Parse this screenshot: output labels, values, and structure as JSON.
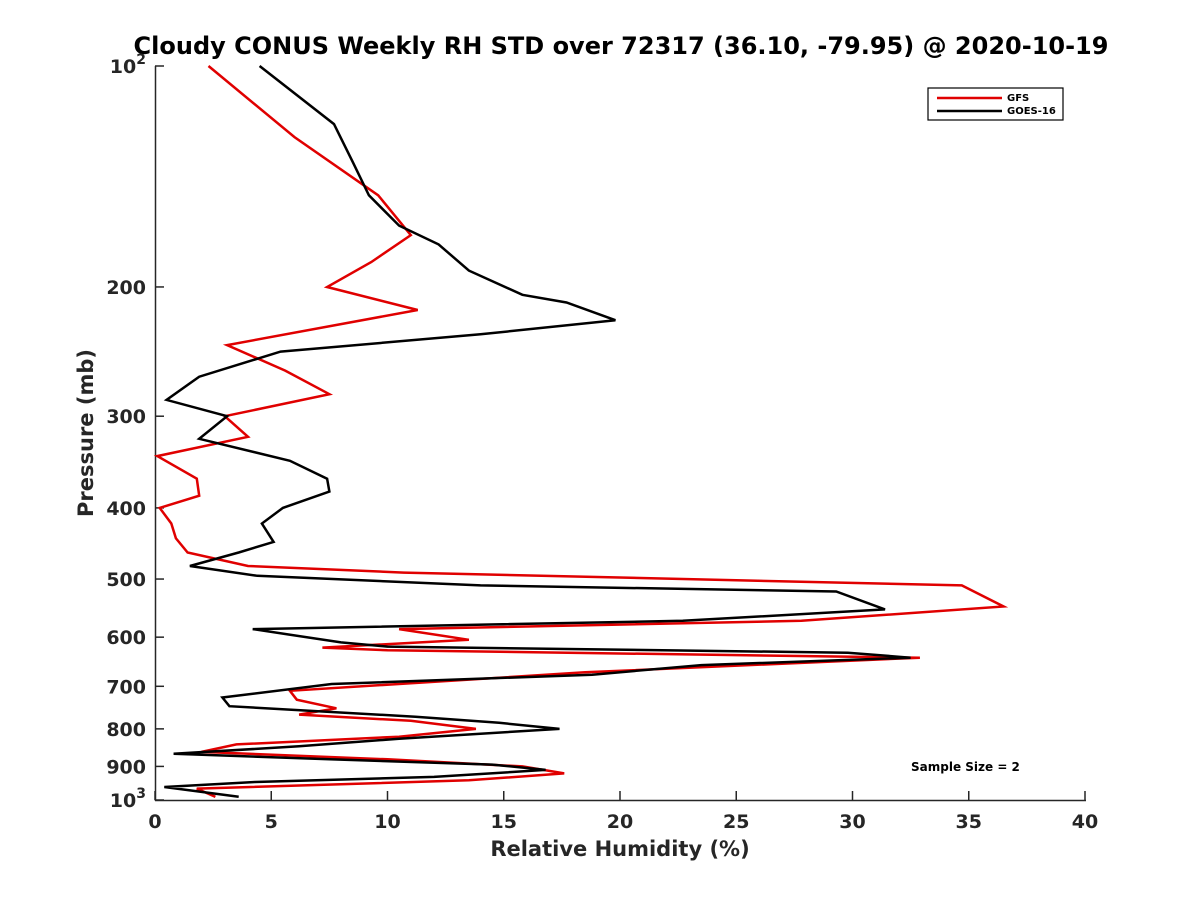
{
  "chart_data": {
    "type": "line",
    "title": "Cloudy CONUS Weekly RH STD over 72317 (36.10, -79.95) @ 2020-10-19",
    "xlabel": "Relative Humidity (%)",
    "ylabel": "Pressure (mb)",
    "xlim": [
      0,
      40
    ],
    "ylim": [
      100,
      1000
    ],
    "y_scale": "log",
    "y_reversed": true,
    "x_ticks": [
      "0",
      "5",
      "10",
      "15",
      "20",
      "25",
      "30",
      "35",
      "40"
    ],
    "y_ticks": [
      {
        "value": 100,
        "label": "10",
        "sup": "2"
      },
      {
        "value": 200,
        "label": "200"
      },
      {
        "value": 300,
        "label": "300"
      },
      {
        "value": 400,
        "label": "400"
      },
      {
        "value": 500,
        "label": "500"
      },
      {
        "value": 600,
        "label": "600"
      },
      {
        "value": 700,
        "label": "700"
      },
      {
        "value": 800,
        "label": "800"
      },
      {
        "value": 900,
        "label": "900"
      },
      {
        "value": 1000,
        "label": "10",
        "sup": "3"
      }
    ],
    "grid": false,
    "legend_position": "top-right",
    "annotation": "Sample Size = 2",
    "series": [
      {
        "name": "GFS",
        "color": "#e00000",
        "points": [
          [
            2.3,
            100
          ],
          [
            6.0,
            125
          ],
          [
            9.6,
            150
          ],
          [
            11.0,
            170
          ],
          [
            9.3,
            185
          ],
          [
            7.4,
            200
          ],
          [
            11.3,
            215
          ],
          [
            3.1,
            240
          ],
          [
            5.6,
            260
          ],
          [
            7.5,
            280
          ],
          [
            3.0,
            300
          ],
          [
            4.0,
            320
          ],
          [
            0.1,
            340
          ],
          [
            1.8,
            365
          ],
          [
            1.9,
            385
          ],
          [
            0.2,
            400
          ],
          [
            0.7,
            420
          ],
          [
            0.9,
            440
          ],
          [
            1.4,
            460
          ],
          [
            4.0,
            480
          ],
          [
            10.7,
            490
          ],
          [
            34.7,
            510
          ],
          [
            36.5,
            545
          ],
          [
            27.8,
            570
          ],
          [
            10.5,
            585
          ],
          [
            13.5,
            605
          ],
          [
            7.2,
            620
          ],
          [
            10.0,
            625
          ],
          [
            32.9,
            640
          ],
          [
            18.5,
            670
          ],
          [
            5.8,
            710
          ],
          [
            6.1,
            730
          ],
          [
            7.8,
            750
          ],
          [
            6.2,
            765
          ],
          [
            11.0,
            780
          ],
          [
            13.8,
            800
          ],
          [
            10.5,
            820
          ],
          [
            3.5,
            840
          ],
          [
            2.0,
            860
          ],
          [
            10.0,
            880
          ],
          [
            15.8,
            900
          ],
          [
            17.6,
            920
          ],
          [
            13.5,
            940
          ],
          [
            1.8,
            965
          ],
          [
            2.6,
            990
          ]
        ]
      },
      {
        "name": "GOES-16",
        "color": "#000000",
        "points": [
          [
            4.5,
            100
          ],
          [
            7.7,
            120
          ],
          [
            8.5,
            135
          ],
          [
            9.2,
            150
          ],
          [
            10.5,
            165
          ],
          [
            12.2,
            175
          ],
          [
            13.5,
            190
          ],
          [
            15.8,
            205
          ],
          [
            17.7,
            210
          ],
          [
            19.8,
            222
          ],
          [
            14.0,
            232
          ],
          [
            5.4,
            245
          ],
          [
            1.9,
            265
          ],
          [
            0.5,
            285
          ],
          [
            3.1,
            300
          ],
          [
            1.9,
            322
          ],
          [
            5.8,
            345
          ],
          [
            7.4,
            365
          ],
          [
            7.5,
            380
          ],
          [
            5.5,
            400
          ],
          [
            4.6,
            420
          ],
          [
            5.1,
            445
          ],
          [
            3.6,
            460
          ],
          [
            1.5,
            480
          ],
          [
            4.4,
            495
          ],
          [
            14.0,
            510
          ],
          [
            29.3,
            520
          ],
          [
            31.4,
            550
          ],
          [
            22.7,
            570
          ],
          [
            4.2,
            585
          ],
          [
            8.0,
            610
          ],
          [
            10.0,
            618
          ],
          [
            29.8,
            630
          ],
          [
            32.5,
            640
          ],
          [
            23.5,
            655
          ],
          [
            18.8,
            675
          ],
          [
            7.6,
            695
          ],
          [
            2.9,
            725
          ],
          [
            3.2,
            745
          ],
          [
            11.2,
            770
          ],
          [
            14.8,
            785
          ],
          [
            17.4,
            800
          ],
          [
            10.5,
            825
          ],
          [
            6.2,
            845
          ],
          [
            0.8,
            865
          ],
          [
            7.5,
            880
          ],
          [
            14.5,
            895
          ],
          [
            16.8,
            910
          ],
          [
            12.0,
            930
          ],
          [
            4.3,
            945
          ],
          [
            0.4,
            960
          ],
          [
            2.0,
            975
          ],
          [
            3.6,
            990
          ]
        ]
      }
    ]
  }
}
